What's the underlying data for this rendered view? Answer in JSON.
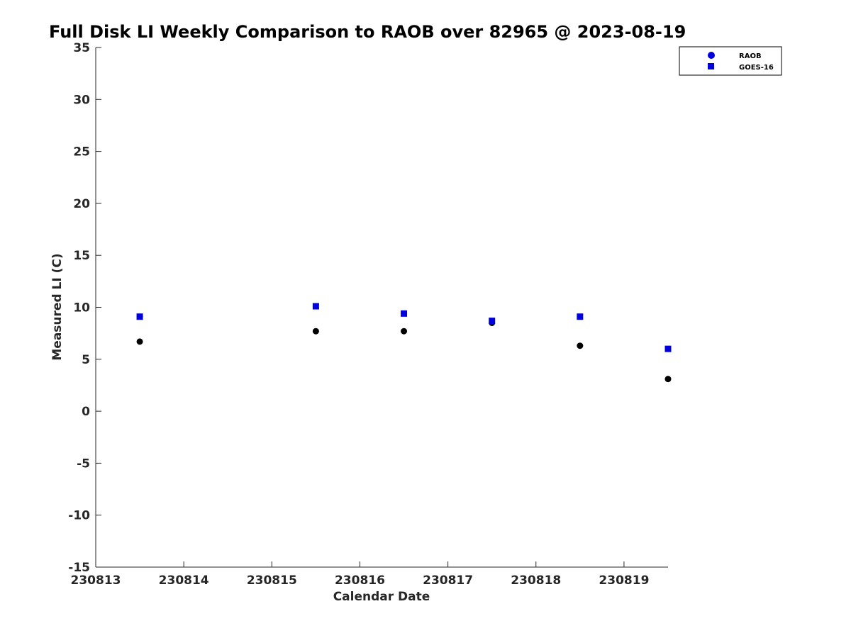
{
  "chart_data": {
    "type": "scatter",
    "title": "Full Disk LI Weekly Comparison to RAOB over 82965 @ 2023-08-19",
    "xlabel": "Calendar Date",
    "ylabel": "Measured LI (C)",
    "xlim": [
      "230813",
      "230819.5"
    ],
    "ylim": [
      -15,
      35
    ],
    "x_ticks": [
      "230813",
      "230814",
      "230815",
      "230816",
      "230817",
      "230818",
      "230819"
    ],
    "y_ticks": [
      "35",
      "30",
      "25",
      "20",
      "15",
      "10",
      "5",
      "0",
      "-5",
      "-10",
      "-15"
    ],
    "grid": false,
    "legend_position": "top-right",
    "series": [
      {
        "name": "RAOB",
        "marker": "circle",
        "legend_color": "#0000dd",
        "point_color": "#000000",
        "x": [
          230813.5,
          230815.5,
          230816.5,
          230817.5,
          230818.5,
          230819.5
        ],
        "y": [
          6.7,
          7.7,
          7.7,
          8.5,
          6.3,
          3.1
        ]
      },
      {
        "name": "GOES-16",
        "marker": "square",
        "legend_color": "#0000dd",
        "point_color": "#0000dd",
        "x": [
          230813.5,
          230815.5,
          230816.5,
          230817.5,
          230818.5,
          230819.5
        ],
        "y": [
          9.1,
          10.1,
          9.4,
          8.7,
          9.1,
          6.0
        ]
      }
    ]
  }
}
